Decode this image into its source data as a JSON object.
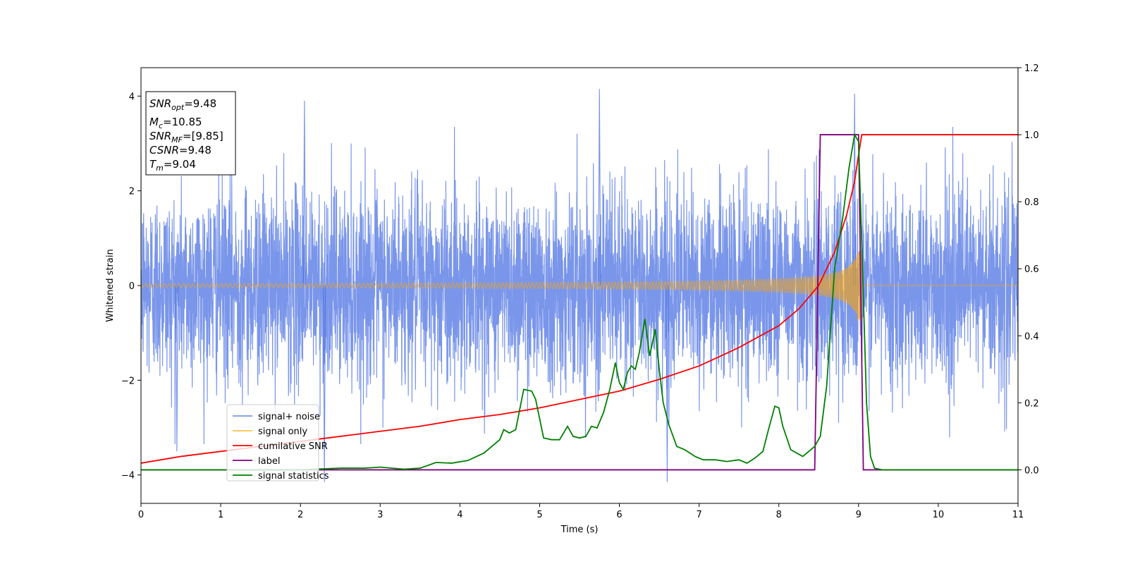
{
  "chart_data": {
    "type": "line",
    "xlabel": "Time (s)",
    "ylabel": "Whitened strain",
    "xlim": [
      0,
      11
    ],
    "ylim_left": [
      -4.6,
      4.6
    ],
    "ylim_right": [
      -0.1,
      1.2
    ],
    "x_ticks": [
      "0",
      "1",
      "2",
      "3",
      "4",
      "5",
      "6",
      "7",
      "8",
      "9",
      "10",
      "11"
    ],
    "y_ticks_left": [
      "4",
      "2",
      "0",
      "−2",
      "−4"
    ],
    "y_ticks_right": [
      "1.2",
      "1.0",
      "0.8",
      "0.6",
      "0.4",
      "0.2",
      "0.0"
    ],
    "info_box": {
      "snr_opt": {
        "base": "SNR",
        "sub": "opt",
        "value": "=9.48"
      },
      "mc": {
        "base": "M",
        "sub": "c",
        "value": "=10.85"
      },
      "snr_mf": {
        "base": "SNR",
        "sub": "MF",
        "value": "=[9.85]"
      },
      "csnr": {
        "base": "CSNR",
        "sub": "",
        "value": "=9.48"
      },
      "tm": {
        "base": "T",
        "sub": "m",
        "value": "=9.04"
      }
    },
    "legend": {
      "placement": "lower-left",
      "entries": [
        {
          "label": "signal+ noise",
          "color": "#4169e1"
        },
        {
          "label": "signal only",
          "color": "#ffa500"
        },
        {
          "label": "cumilative SNR",
          "color": "#ff0000"
        },
        {
          "label": "label",
          "color": "#800080"
        },
        {
          "label": "signal statistics",
          "color": "#008000"
        }
      ]
    },
    "series": [
      {
        "name": "signal+ noise",
        "axis": "left",
        "description_free": true,
        "noise_std": 1.0,
        "peaks": [
          {
            "x": 5.75,
            "y": 4.15
          },
          {
            "x": 8.95,
            "y": 4.05
          },
          {
            "x": 2.3,
            "y": -4.15
          },
          {
            "x": 6.6,
            "y": -4.15
          },
          {
            "x": 2.05,
            "y": 3.9
          },
          {
            "x": 0.45,
            "y": -3.5
          }
        ]
      },
      {
        "name": "signal only",
        "axis": "left",
        "merger_time": 9.04,
        "amplitude_start": 0.04,
        "amplitude_peak": 0.75
      },
      {
        "name": "cumilative SNR",
        "axis": "right",
        "x": [
          0,
          0.5,
          1,
          1.5,
          2,
          2.5,
          3,
          3.5,
          4,
          4.5,
          5,
          5.5,
          6,
          6.5,
          7,
          7.5,
          8,
          8.25,
          8.5,
          8.7,
          8.85,
          8.95,
          9.0,
          9.04,
          11
        ],
        "y": [
          0.02,
          0.04,
          0.055,
          0.07,
          0.085,
          0.1,
          0.115,
          0.13,
          0.15,
          0.165,
          0.185,
          0.21,
          0.235,
          0.27,
          0.31,
          0.365,
          0.43,
          0.48,
          0.55,
          0.65,
          0.76,
          0.86,
          0.94,
          1.0,
          1.0
        ]
      },
      {
        "name": "label",
        "axis": "right",
        "x": [
          0,
          8.45,
          8.52,
          9.0,
          9.06,
          11
        ],
        "y": [
          0,
          0,
          1,
          1,
          0,
          0
        ]
      },
      {
        "name": "signal statistics",
        "axis": "right",
        "x": [
          0,
          0.5,
          1,
          1.5,
          2,
          2.5,
          2.8,
          3,
          3.3,
          3.5,
          3.7,
          3.9,
          4.1,
          4.3,
          4.5,
          4.55,
          4.62,
          4.7,
          4.8,
          4.9,
          4.95,
          5.05,
          5.15,
          5.25,
          5.35,
          5.42,
          5.5,
          5.58,
          5.65,
          5.72,
          5.8,
          5.88,
          5.95,
          6.0,
          6.05,
          6.1,
          6.15,
          6.2,
          6.25,
          6.32,
          6.38,
          6.45,
          6.5,
          6.55,
          6.62,
          6.72,
          6.82,
          6.95,
          7.05,
          7.2,
          7.35,
          7.5,
          7.6,
          7.7,
          7.8,
          7.87,
          7.95,
          8.0,
          8.05,
          8.15,
          8.3,
          8.45,
          8.52,
          8.6,
          8.7,
          8.8,
          8.88,
          8.95,
          9.0,
          9.05,
          9.1,
          9.15,
          9.2,
          9.3,
          11
        ],
        "y": [
          0,
          0,
          0,
          0,
          0,
          0.005,
          0.005,
          0.008,
          0.002,
          0.005,
          0.022,
          0.02,
          0.028,
          0.05,
          0.09,
          0.12,
          0.11,
          0.12,
          0.24,
          0.235,
          0.21,
          0.095,
          0.09,
          0.09,
          0.13,
          0.1,
          0.095,
          0.1,
          0.13,
          0.125,
          0.17,
          0.24,
          0.32,
          0.26,
          0.24,
          0.29,
          0.31,
          0.3,
          0.35,
          0.45,
          0.34,
          0.42,
          0.3,
          0.2,
          0.135,
          0.07,
          0.06,
          0.04,
          0.03,
          0.03,
          0.025,
          0.03,
          0.02,
          0.035,
          0.055,
          0.12,
          0.19,
          0.185,
          0.13,
          0.06,
          0.04,
          0.07,
          0.1,
          0.25,
          0.6,
          0.75,
          0.9,
          1.0,
          0.98,
          0.6,
          0.2,
          0.04,
          0.005,
          0,
          0
        ]
      }
    ]
  }
}
